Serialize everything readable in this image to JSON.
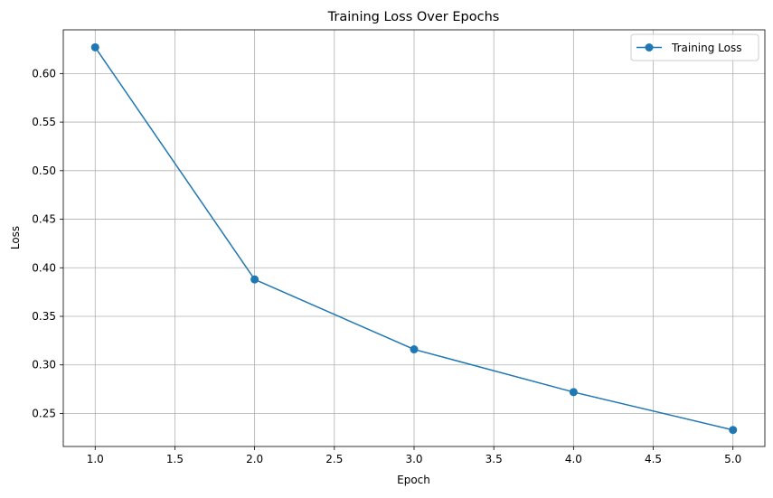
{
  "chart_data": {
    "type": "line",
    "title": "Training Loss Over Epochs",
    "xlabel": "Epoch",
    "ylabel": "Loss",
    "xlim": [
      0.8,
      5.2
    ],
    "ylim": [
      0.216,
      0.645
    ],
    "xticks": [
      1.0,
      1.5,
      2.0,
      2.5,
      3.0,
      3.5,
      4.0,
      4.5,
      5.0
    ],
    "yticks": [
      0.25,
      0.3,
      0.35,
      0.4,
      0.45,
      0.5,
      0.55,
      0.6
    ],
    "xtick_labels": [
      "1.0",
      "1.5",
      "2.0",
      "2.5",
      "3.0",
      "3.5",
      "4.0",
      "4.5",
      "5.0"
    ],
    "ytick_labels": [
      "0.25",
      "0.30",
      "0.35",
      "0.40",
      "0.45",
      "0.50",
      "0.55",
      "0.60"
    ],
    "grid": true,
    "legend_position": "top-right",
    "series": [
      {
        "name": "Training Loss",
        "color": "#1f77b4",
        "marker": "circle",
        "x": [
          1,
          2,
          3,
          4,
          5
        ],
        "y": [
          0.627,
          0.388,
          0.316,
          0.272,
          0.233
        ]
      }
    ]
  }
}
